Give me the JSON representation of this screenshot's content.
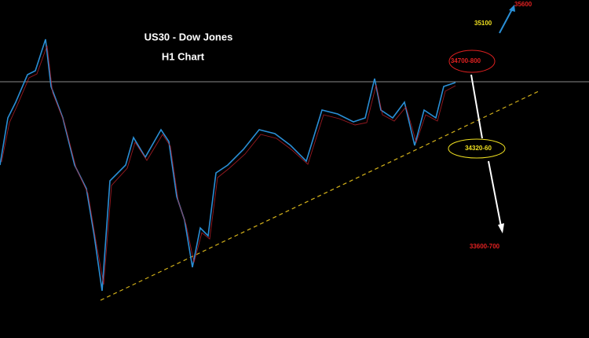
{
  "title": "US30 - Dow Jones",
  "subtitle": "H1 Chart",
  "annotations": {
    "target_up": "35600",
    "level_up": "35100",
    "resistance": "34700-800",
    "support": "34320-60",
    "target_down": "33600-700"
  }
}
